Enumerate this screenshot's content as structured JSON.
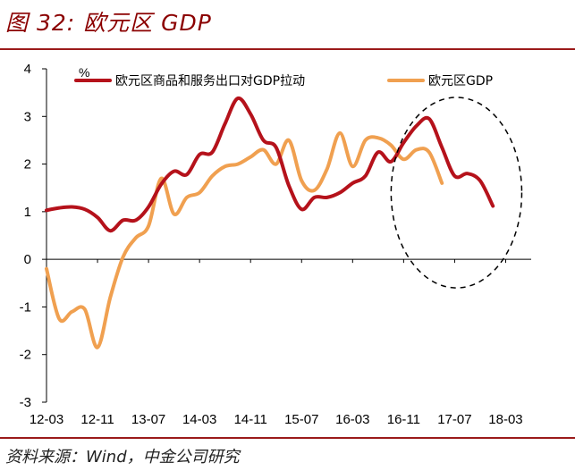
{
  "header": {
    "title": "图 32: 欧元区 GDP"
  },
  "footer": {
    "source": "资料来源：Wind，中金公司研究"
  },
  "chart_data": {
    "type": "line",
    "unit": "%",
    "ylim": [
      -3,
      4
    ],
    "yticks": [
      -3,
      -2,
      -1,
      0,
      1,
      2,
      3,
      4
    ],
    "x_tick_labels": [
      "12-03",
      "12-11",
      "13-07",
      "14-03",
      "14-11",
      "15-07",
      "16-03",
      "16-11",
      "17-07",
      "18-03"
    ],
    "x": [
      "12-03",
      "12-05",
      "12-07",
      "12-09",
      "12-11",
      "13-01",
      "13-03",
      "13-05",
      "13-07",
      "13-09",
      "13-11",
      "14-01",
      "14-03",
      "14-05",
      "14-07",
      "14-09",
      "14-11",
      "15-01",
      "15-03",
      "15-05",
      "15-07",
      "15-09",
      "15-11",
      "16-01",
      "16-03",
      "16-05",
      "16-07",
      "16-09",
      "16-11",
      "17-01",
      "17-03",
      "17-05",
      "17-07",
      "17-09",
      "17-11",
      "18-01",
      "18-03",
      "18-05",
      "18-07"
    ],
    "series": [
      {
        "name": "欧元区商品和服务出口对GDP拉动",
        "color": "#b5121b",
        "values": [
          1.03,
          1.08,
          1.1,
          1.05,
          0.88,
          0.6,
          0.82,
          0.82,
          1.1,
          1.58,
          1.85,
          1.78,
          2.2,
          2.25,
          2.85,
          3.38,
          3.05,
          2.5,
          2.35,
          1.55,
          1.05,
          1.3,
          1.3,
          1.4,
          1.6,
          1.75,
          2.25,
          2.05,
          2.45,
          2.8,
          2.95,
          2.35,
          1.75,
          1.8,
          1.65,
          1.12,
          null,
          null,
          null
        ]
      },
      {
        "name": "欧元区GDP",
        "color": "#f0a050",
        "values": [
          -0.2,
          -1.25,
          -1.1,
          -1.05,
          -1.85,
          -0.8,
          0.05,
          0.45,
          0.7,
          1.7,
          0.95,
          1.3,
          1.4,
          1.75,
          1.95,
          2.0,
          2.15,
          2.3,
          2.0,
          2.5,
          1.65,
          1.45,
          1.9,
          2.65,
          1.95,
          2.5,
          2.55,
          2.4,
          2.1,
          2.3,
          2.25,
          1.6,
          null,
          null,
          null,
          null,
          null,
          null,
          null
        ]
      }
    ],
    "annotation": "dashed ellipse around 16-11 to 18-03",
    "grid": false,
    "legend_position": "top"
  }
}
